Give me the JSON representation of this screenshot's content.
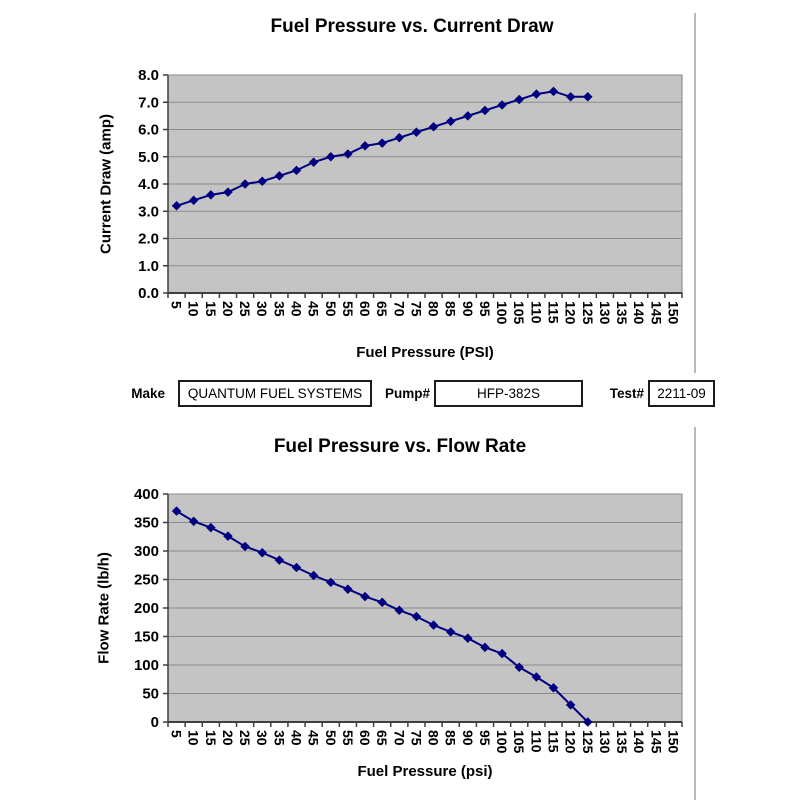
{
  "colors": {
    "plot_bg": "#c4c4c4",
    "gridline": "#8c8c8c",
    "plot_border": "#7f7f7f",
    "axis": "#3f3f3f",
    "series_line": "#000080",
    "frame_line": "#b9b9b9",
    "text": "#000000"
  },
  "form": {
    "make_label": "Make",
    "make_value": "QUANTUM FUEL SYSTEMS",
    "pump_label": "Pump#",
    "pump_value": "HFP-382S",
    "test_label": "Test#",
    "test_value": "2211-09"
  },
  "chart_data": [
    {
      "type": "line",
      "title": "Fuel Pressure vs. Current Draw",
      "xlabel": "Fuel Pressure (PSI)",
      "ylabel": "Current Draw (amp)",
      "categories": [
        5,
        10,
        15,
        20,
        25,
        30,
        35,
        40,
        45,
        50,
        55,
        60,
        65,
        70,
        75,
        80,
        85,
        90,
        95,
        100,
        105,
        110,
        115,
        120,
        125,
        130,
        135,
        140,
        145,
        150
      ],
      "xtick_labels": [
        "5",
        "10",
        "15",
        "20",
        "25",
        "30",
        "35",
        "40",
        "45",
        "50",
        "55",
        "60",
        "65",
        "70",
        "75",
        "80",
        "85",
        "90",
        "95",
        "100",
        "105",
        "110",
        "115",
        "120",
        "125",
        "130",
        "135",
        "140",
        "145",
        "150"
      ],
      "series": [
        {
          "name": "Current Draw",
          "values": [
            3.2,
            3.4,
            3.6,
            3.7,
            4.0,
            4.1,
            4.3,
            4.5,
            4.8,
            5.0,
            5.1,
            5.4,
            5.5,
            5.7,
            5.9,
            6.1,
            6.3,
            6.5,
            6.7,
            6.9,
            7.1,
            7.3,
            7.4,
            7.2,
            7.2
          ]
        }
      ],
      "ylim": [
        0,
        8
      ],
      "ytick_labels": [
        "8.0",
        "7.0",
        "6.0",
        "5.0",
        "4.0",
        "3.0",
        "2.0",
        "1.0",
        "0.0"
      ],
      "grid": true,
      "legend": "none",
      "marker": "diamond"
    },
    {
      "type": "line",
      "title": "Fuel Pressure vs. Flow Rate",
      "xlabel": "Fuel Pressure (psi)",
      "ylabel": "Flow Rate (lb/h)",
      "categories": [
        5,
        10,
        15,
        20,
        25,
        30,
        35,
        40,
        45,
        50,
        55,
        60,
        65,
        70,
        75,
        80,
        85,
        90,
        95,
        100,
        105,
        110,
        115,
        120,
        125,
        130,
        135,
        140,
        145,
        150
      ],
      "xtick_labels": [
        "5",
        "10",
        "15",
        "20",
        "25",
        "30",
        "35",
        "40",
        "45",
        "50",
        "55",
        "60",
        "65",
        "70",
        "75",
        "80",
        "85",
        "90",
        "95",
        "100",
        "105",
        "110",
        "115",
        "120",
        "125",
        "130",
        "135",
        "140",
        "145",
        "150"
      ],
      "series": [
        {
          "name": "Flow Rate",
          "values": [
            370,
            352,
            341,
            326,
            308,
            297,
            284,
            271,
            257,
            245,
            233,
            220,
            210,
            196,
            185,
            170,
            158,
            147,
            131,
            120,
            96,
            79,
            60,
            30,
            0
          ]
        }
      ],
      "ylim": [
        0,
        400
      ],
      "ytick_labels": [
        "400",
        "350",
        "300",
        "250",
        "200",
        "150",
        "100",
        "50",
        "0"
      ],
      "grid": true,
      "legend": "none",
      "marker": "diamond"
    }
  ]
}
